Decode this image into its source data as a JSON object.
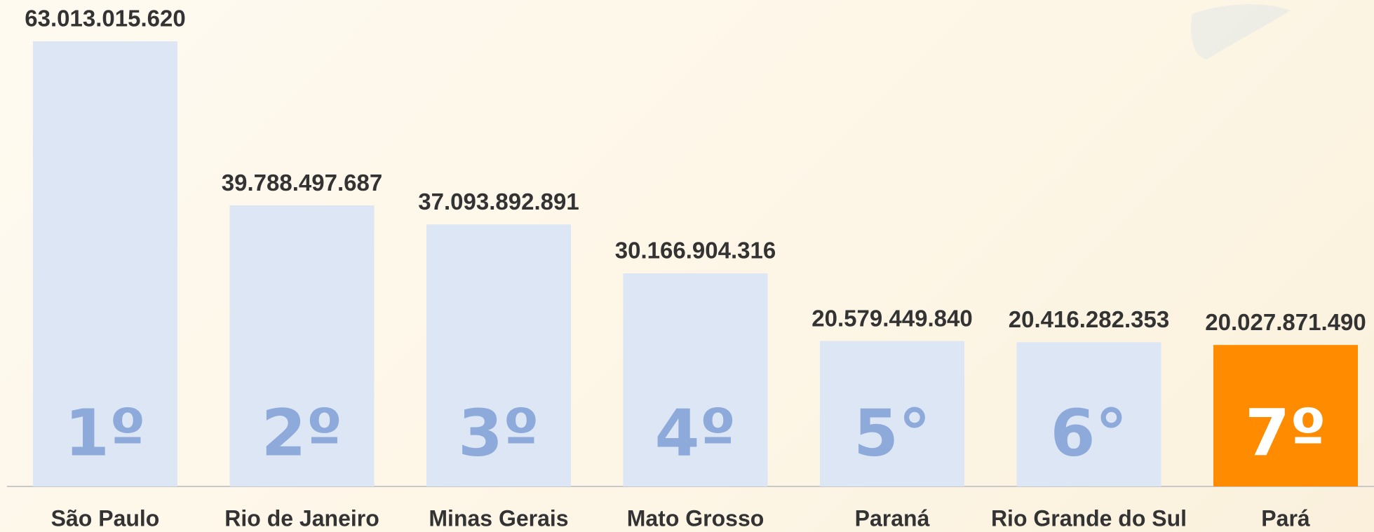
{
  "chart_data": {
    "type": "bar",
    "categories": [
      "São Paulo",
      "Rio de Janeiro",
      "Minas Gerais",
      "Mato Grosso",
      "Paraná",
      "Rio Grande do Sul",
      "Pará"
    ],
    "values": [
      63013015620,
      39788497687,
      37093892891,
      30166904316,
      20579449840,
      20416282353,
      20027871490
    ],
    "value_labels": [
      "63.013.015.620",
      "39.788.497.687",
      "37.093.892.891",
      "30.166.904.316",
      "20.579.449.840",
      "20.416.282.353",
      "20.027.871.490"
    ],
    "ranks": [
      "1º",
      "2º",
      "3º",
      "4º",
      "5°",
      "6°",
      "7º"
    ],
    "colors": [
      "#dce6f4",
      "#dce6f4",
      "#dce6f4",
      "#dce6f4",
      "#dce6f4",
      "#dce6f4",
      "#ff8c00"
    ],
    "rank_colors": [
      "#8eaadb",
      "#8eaadb",
      "#8eaadb",
      "#8eaadb",
      "#8eaadb",
      "#8eaadb",
      "#ffffff"
    ]
  }
}
